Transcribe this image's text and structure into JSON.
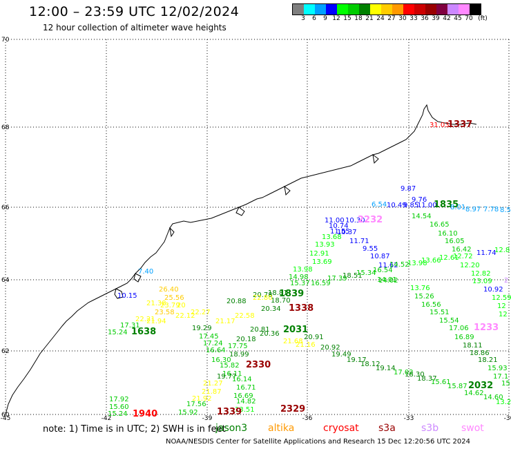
{
  "title": "12:00 – 23:59 UTC 12/02/2024",
  "subtitle": "12 hour collection of altimeter wave heights",
  "colorbar": {
    "unit": "(ft)",
    "colors": [
      "#7f7f7f",
      "#00ffff",
      "#00a0ff",
      "#0000ff",
      "#00ff00",
      "#00cc00",
      "#008000",
      "#ffff00",
      "#ffcc00",
      "#ff9900",
      "#ff0000",
      "#cc0000",
      "#990000",
      "#800040",
      "#cc88ff",
      "#ff88ff",
      "#000000"
    ],
    "labels": [
      "3",
      "6",
      "9",
      "12",
      "15",
      "18",
      "21",
      "24",
      "27",
      "30",
      "33",
      "36",
      "39",
      "42",
      "45",
      "70"
    ]
  },
  "axes": {
    "lat_labels": [
      "70",
      "68",
      "66",
      "64",
      "62",
      "60"
    ],
    "lon_labels": [
      "-45",
      "-42",
      "-39",
      "-36",
      "-33",
      "-30"
    ]
  },
  "observations": [
    {
      "t": "31.03",
      "c": "#ff0000"
    },
    {
      "t": "1337",
      "c": "#990000"
    },
    {
      "t": "9.87",
      "c": "#0000ff"
    },
    {
      "t": "9.76",
      "c": "#0000ff"
    },
    {
      "t": "6.54",
      "c": "#00a0ff"
    },
    {
      "t": "10.49",
      "c": "#0000ff"
    },
    {
      "t": "9.85",
      "c": "#0000ff"
    },
    {
      "t": "11.00",
      "c": "#0000ff"
    },
    {
      "t": "1835",
      "c": "#008000"
    },
    {
      "t": "8.01",
      "c": "#00a0ff"
    },
    {
      "t": "8.97",
      "c": "#00a0ff"
    },
    {
      "t": "7.78",
      "c": "#00a0ff"
    },
    {
      "t": "8.5",
      "c": "#00a0ff"
    },
    {
      "t": "14.54",
      "c": "#00cc00"
    },
    {
      "t": "16.65",
      "c": "#00cc00"
    },
    {
      "t": "16.10",
      "c": "#00cc00"
    },
    {
      "t": "16.05",
      "c": "#00cc00"
    },
    {
      "t": "16.42",
      "c": "#00cc00"
    },
    {
      "t": "11.74",
      "c": "#0000ff"
    },
    {
      "t": "12.8",
      "c": "#00ff00"
    },
    {
      "t": "11.00",
      "c": "#0000ff"
    },
    {
      "t": "10.30",
      "c": "#0000ff"
    },
    {
      "t": "2232",
      "c": "#ff88ff"
    },
    {
      "t": "10.74",
      "c": "#0000ff"
    },
    {
      "t": "11.55",
      "c": "#0000ff"
    },
    {
      "t": "10.37",
      "c": "#0000ff"
    },
    {
      "t": "13.68",
      "c": "#00ff00"
    },
    {
      "t": "13.93",
      "c": "#00ff00"
    },
    {
      "t": "11.71",
      "c": "#0000ff"
    },
    {
      "t": "9.55",
      "c": "#0000ff"
    },
    {
      "t": "12.91",
      "c": "#00ff00"
    },
    {
      "t": "10.87",
      "c": "#0000ff"
    },
    {
      "t": "13.69",
      "c": "#00ff00"
    },
    {
      "t": "11.62",
      "c": "#0000ff"
    },
    {
      "t": "13.98",
      "c": "#00ff00"
    },
    {
      "t": "14.98",
      "c": "#00cc00"
    },
    {
      "t": "15.37",
      "c": "#00cc00"
    },
    {
      "t": "16.59",
      "c": "#00cc00"
    },
    {
      "t": "17.39",
      "c": "#00cc00"
    },
    {
      "t": "18.51",
      "c": "#008000"
    },
    {
      "t": "15.34",
      "c": "#00cc00"
    },
    {
      "t": "16.54",
      "c": "#00cc00"
    },
    {
      "t": "14.02",
      "c": "#00cc00"
    },
    {
      "t": "14.52",
      "c": "#00cc00"
    },
    {
      "t": "13.98",
      "c": "#00ff00"
    },
    {
      "t": "13.66",
      "c": "#00ff00"
    },
    {
      "t": "12.61",
      "c": "#00ff00"
    },
    {
      "t": "12.72",
      "c": "#00ff00"
    },
    {
      "t": "12.20",
      "c": "#00ff00"
    },
    {
      "t": "12.82",
      "c": "#00ff00"
    },
    {
      "t": "13.09",
      "c": "#00ff00"
    },
    {
      "t": "2",
      "c": "#cc88ff"
    },
    {
      "t": "14.01",
      "c": "#00cc00"
    },
    {
      "t": "10.92",
      "c": "#0000ff"
    },
    {
      "t": "12.59",
      "c": "#00ff00"
    },
    {
      "t": "12",
      "c": "#00ff00"
    },
    {
      "t": "12",
      "c": "#00ff00"
    },
    {
      "t": "7.40",
      "c": "#00a0ff"
    },
    {
      "t": "10.15",
      "c": "#0000ff"
    },
    {
      "t": "26.40",
      "c": "#ffcc00"
    },
    {
      "t": "25.56",
      "c": "#ffcc00"
    },
    {
      "t": "21.38",
      "c": "#ffff00"
    },
    {
      "t": "23.79",
      "c": "#ffff00"
    },
    {
      "t": "20",
      "c": "#ffff00"
    },
    {
      "t": "23.58",
      "c": "#ffcc00"
    },
    {
      "t": "21.94",
      "c": "#ffff00"
    },
    {
      "t": "22.21",
      "c": "#ffff00"
    },
    {
      "t": "17.31",
      "c": "#00cc00"
    },
    {
      "t": "15.24",
      "c": "#00cc00"
    },
    {
      "t": "1638",
      "c": "#008000"
    },
    {
      "t": "22.27",
      "c": "#ffff00"
    },
    {
      "t": "22.12",
      "c": "#ffff00"
    },
    {
      "t": "20.88",
      "c": "#008000"
    },
    {
      "t": "20.78",
      "c": "#008000"
    },
    {
      "t": "18.81",
      "c": "#008000"
    },
    {
      "t": "1839",
      "c": "#008000"
    },
    {
      "t": "18.70",
      "c": "#008000"
    },
    {
      "t": "20.34",
      "c": "#008000"
    },
    {
      "t": "1338",
      "c": "#990000"
    },
    {
      "t": "20.81",
      "c": "#008000"
    },
    {
      "t": "2031",
      "c": "#008000"
    },
    {
      "t": "20.36",
      "c": "#008000"
    },
    {
      "t": "20.18",
      "c": "#008000"
    },
    {
      "t": "22.80",
      "c": "#ffff00"
    },
    {
      "t": "22.58",
      "c": "#ffff00"
    },
    {
      "t": "21.17",
      "c": "#ffff00"
    },
    {
      "t": "19.29",
      "c": "#008000"
    },
    {
      "t": "17.45",
      "c": "#00cc00"
    },
    {
      "t": "17.24",
      "c": "#00cc00"
    },
    {
      "t": "17.75",
      "c": "#00cc00"
    },
    {
      "t": "18.99",
      "c": "#008000"
    },
    {
      "t": "16.64",
      "c": "#00cc00"
    },
    {
      "t": "16.30",
      "c": "#00cc00"
    },
    {
      "t": "15.82",
      "c": "#00cc00"
    },
    {
      "t": "2330",
      "c": "#990000"
    },
    {
      "t": "16.11",
      "c": "#00cc00"
    },
    {
      "t": "19.77",
      "c": "#008000"
    },
    {
      "t": "16.14",
      "c": "#00cc00"
    },
    {
      "t": "16.71",
      "c": "#00cc00"
    },
    {
      "t": "16.69",
      "c": "#00cc00"
    },
    {
      "t": "14.82",
      "c": "#00cc00"
    },
    {
      "t": "13.51",
      "c": "#00ff00"
    },
    {
      "t": "2329",
      "c": "#990000"
    },
    {
      "t": "21.27",
      "c": "#ffff00"
    },
    {
      "t": "21.87",
      "c": "#ffff00"
    },
    {
      "t": "21.92",
      "c": "#ffff00"
    },
    {
      "t": "17.56",
      "c": "#00cc00"
    },
    {
      "t": "15.92",
      "c": "#00cc00"
    },
    {
      "t": "1339",
      "c": "#990000"
    },
    {
      "t": "20.91",
      "c": "#008000"
    },
    {
      "t": "20.92",
      "c": "#008000"
    },
    {
      "t": "21.68",
      "c": "#ffff00"
    },
    {
      "t": "21.16",
      "c": "#ffff00"
    },
    {
      "t": "19.49",
      "c": "#008000"
    },
    {
      "t": "19.17",
      "c": "#008000"
    },
    {
      "t": "18.12",
      "c": "#008000"
    },
    {
      "t": "19.14",
      "c": "#008000"
    },
    {
      "t": "17.02",
      "c": "#00cc00"
    },
    {
      "t": "18.30",
      "c": "#008000"
    },
    {
      "t": "18.37",
      "c": "#008000"
    },
    {
      "t": "15.61",
      "c": "#00cc00"
    },
    {
      "t": "15.87",
      "c": "#00cc00"
    },
    {
      "t": "2032",
      "c": "#008000"
    },
    {
      "t": "14.62",
      "c": "#00cc00"
    },
    {
      "t": "14.60",
      "c": "#00cc00"
    },
    {
      "t": "13.22",
      "c": "#00ff00"
    },
    {
      "t": "13.76",
      "c": "#00ff00"
    },
    {
      "t": "15.26",
      "c": "#00cc00"
    },
    {
      "t": "16.56",
      "c": "#00cc00"
    },
    {
      "t": "15.51",
      "c": "#00cc00"
    },
    {
      "t": "15.54",
      "c": "#00cc00"
    },
    {
      "t": "17.06",
      "c": "#00cc00"
    },
    {
      "t": "1233",
      "c": "#ff88ff"
    },
    {
      "t": "16.89",
      "c": "#00cc00"
    },
    {
      "t": "18.11",
      "c": "#008000"
    },
    {
      "t": "18.86",
      "c": "#008000"
    },
    {
      "t": "18.21",
      "c": "#008000"
    },
    {
      "t": "15.93",
      "c": "#00cc00"
    },
    {
      "t": "17.1",
      "c": "#00cc00"
    },
    {
      "t": "15",
      "c": "#00cc00"
    },
    {
      "t": "17.92",
      "c": "#00cc00"
    },
    {
      "t": "15.60",
      "c": "#00cc00"
    },
    {
      "t": "15.24",
      "c": "#00cc00"
    },
    {
      "t": "1940",
      "c": "#ff0000"
    }
  ],
  "footer": {
    "note": "note:  1) Time is in UTC;  2) SWH is in feet",
    "legend": [
      {
        "label": "jason3",
        "color": "#008000"
      },
      {
        "label": "altika",
        "color": "#ff9900"
      },
      {
        "label": "cryosat",
        "color": "#ff0000"
      },
      {
        "label": "s3a",
        "color": "#990000"
      },
      {
        "label": "s3b",
        "color": "#cc88ff"
      },
      {
        "label": "swot",
        "color": "#ff88ff"
      }
    ],
    "credit": "NOAA/NESDIS Center for Satellite Applications and Research    15 Dec 12:20:56 UTC 2024"
  }
}
